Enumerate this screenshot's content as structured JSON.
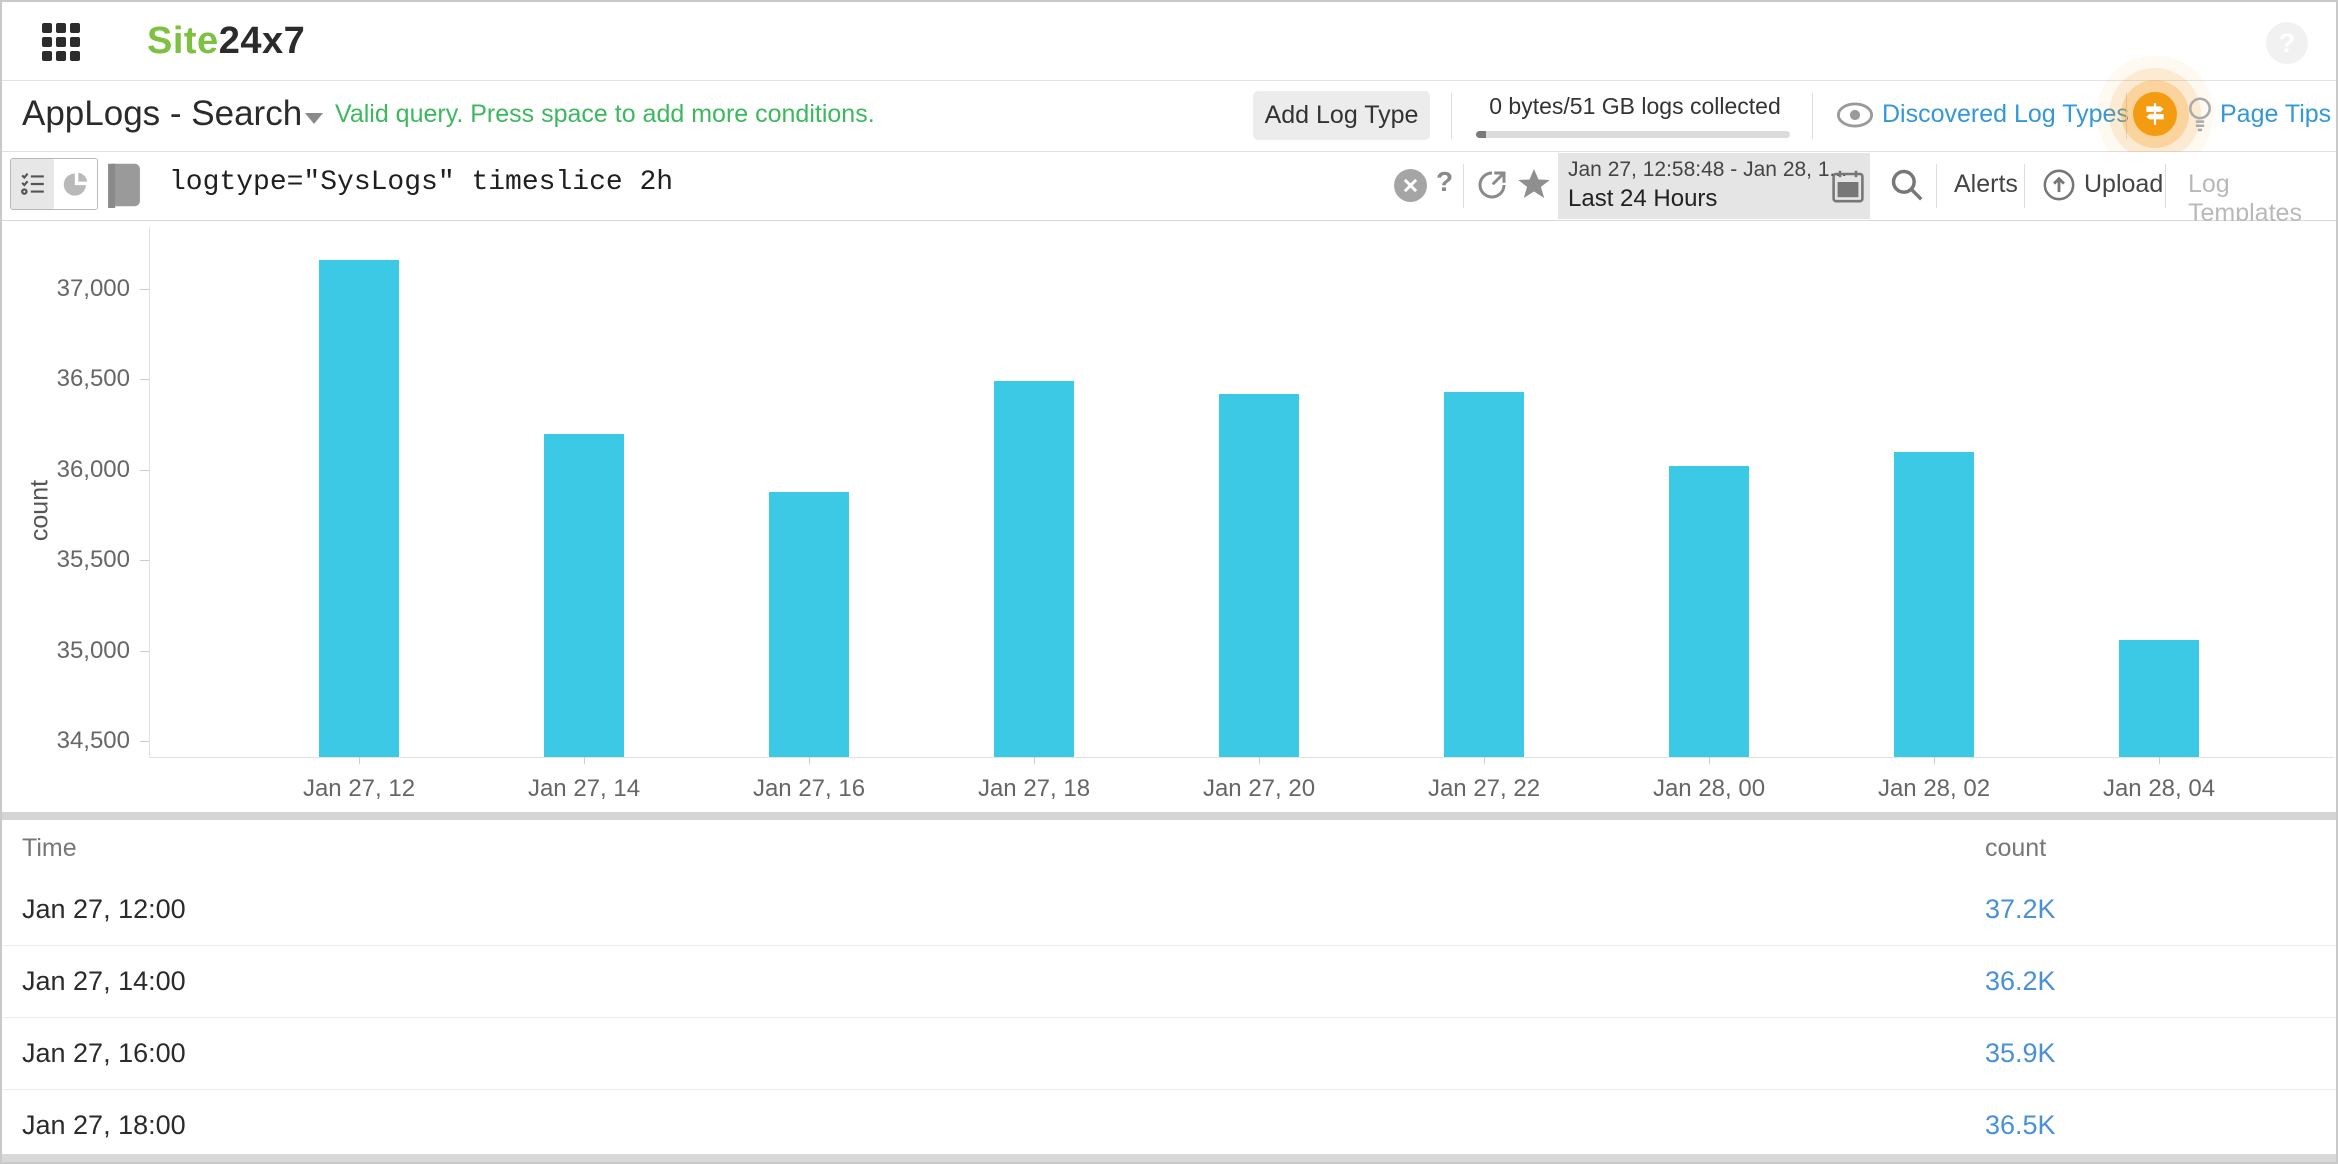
{
  "topbar": {
    "logo_site": "Site",
    "logo_suffix": "24x7",
    "help_glyph": "?"
  },
  "header": {
    "title": "AppLogs - Search",
    "query_hint": "Valid query. Press space to add more conditions.",
    "add_log_type": "Add Log Type",
    "usage": "0 bytes/51 GB logs collected",
    "discovered_log_types": "Discovered Log Types",
    "page_tips": "Page Tips"
  },
  "searchbar": {
    "query": "logtype=\"SysLogs\" timeslice 2h",
    "help_glyph": "?",
    "date_range": "Jan 27, 12:58:48 - Jan 28, 1...",
    "date_preset": "Last 24 Hours",
    "alerts": "Alerts",
    "upload": "Upload",
    "log_templates": "Log Templates"
  },
  "chart_data": {
    "type": "bar",
    "title": "",
    "xlabel": "",
    "ylabel": "count",
    "categories": [
      "Jan 27, 12",
      "Jan 27, 14",
      "Jan 27, 16",
      "Jan 27, 18",
      "Jan 27, 20",
      "Jan 27, 22",
      "Jan 28, 00",
      "Jan 28, 02",
      "Jan 28, 04"
    ],
    "values": [
      37160,
      36200,
      35880,
      36490,
      36420,
      36430,
      36020,
      36100,
      35060
    ],
    "ylim": [
      34412,
      37343
    ],
    "yticks": [
      34500,
      35000,
      35500,
      36000,
      36500,
      37000
    ],
    "ytick_labels": [
      "34,500",
      "35,000",
      "35,500",
      "36,000",
      "36,500",
      "37,000"
    ],
    "bar_color": "#3cc9e6",
    "grid": false,
    "legend": "none"
  },
  "table": {
    "columns": [
      "Time",
      "count"
    ],
    "rows": [
      {
        "time": "Jan 27, 12:00",
        "count": "37.2K"
      },
      {
        "time": "Jan 27, 14:00",
        "count": "36.2K"
      },
      {
        "time": "Jan 27, 16:00",
        "count": "35.9K"
      },
      {
        "time": "Jan 27, 18:00",
        "count": "36.5K"
      }
    ]
  },
  "colors": {
    "brand_green": "#7cc142",
    "brand_dark": "#2b2b2b",
    "hint_green": "#3cb95d",
    "link_blue": "#3498d8",
    "count_link_blue": "#4a90d9",
    "bar_cyan": "#3cc9e6",
    "tips_orange": "#f39c12"
  }
}
